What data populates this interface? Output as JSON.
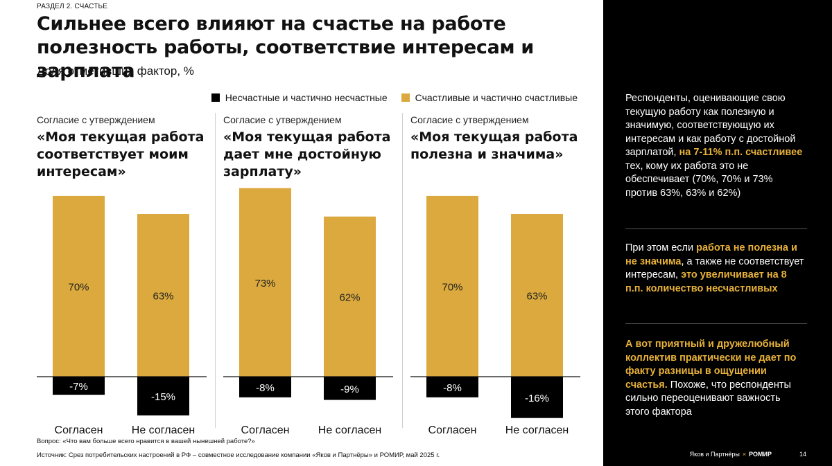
{
  "section_label": "РАЗДЕЛ 2. СЧАСТЬЕ",
  "title": "Сильнее всего влияют на счастье на работе полезность работы, соответствие интересам и зарплата",
  "subtitle": "Доля отметивших фактор, %",
  "legend": [
    {
      "label": "Несчастные и частично несчастные",
      "color": "#000000"
    },
    {
      "label": "Счастливые и частично счастливые",
      "color": "#dba93d"
    }
  ],
  "colors": {
    "happy": "#dba93d",
    "unhappy": "#000000",
    "side_highlight": "#e8b23a"
  },
  "chart_data": [
    {
      "type": "bar",
      "caption": "Согласие с утверждением",
      "title": "«Моя текущая работа соответствует моим интересам»",
      "categories": [
        "Согласен",
        "Не согласен"
      ],
      "series": [
        {
          "name": "Счастливые и частично счастливые",
          "values": [
            70,
            63
          ],
          "labels": [
            "70%",
            "63%"
          ]
        },
        {
          "name": "Несчастные и частично несчастные",
          "values": [
            -7,
            -15
          ],
          "labels": [
            "-7%",
            "-15%"
          ]
        }
      ]
    },
    {
      "type": "bar",
      "caption": "Согласие с утверждением",
      "title": "«Моя текущая работа дает мне достойную зарплату»",
      "categories": [
        "Согласен",
        "Не согласен"
      ],
      "series": [
        {
          "name": "Счастливые и частично счастливые",
          "values": [
            73,
            62
          ],
          "labels": [
            "73%",
            "62%"
          ]
        },
        {
          "name": "Несчастные и частично несчастные",
          "values": [
            -8,
            -9
          ],
          "labels": [
            "-8%",
            "-9%"
          ]
        }
      ]
    },
    {
      "type": "bar",
      "caption": "Согласие с утверждением",
      "title": "«Моя текущая работа полезна и значима»",
      "categories": [
        "Согласен",
        "Не согласен"
      ],
      "series": [
        {
          "name": "Счастливые и частично счастливые",
          "values": [
            70,
            63
          ],
          "labels": [
            "70%",
            "63%"
          ]
        },
        {
          "name": "Несчастные и частично несчастные",
          "values": [
            -8,
            -16
          ],
          "labels": [
            "-8%",
            "-16%"
          ]
        }
      ]
    }
  ],
  "footnotes": {
    "question": "Вопрос: «Что вам больше всего нравится в вашей нынешней работе?»",
    "source": "Источник: Срез потребительских настроений в РФ – совместное исследование компании «Яков и Партнёры» и РОМИР, май 2025 г."
  },
  "side": {
    "block1": {
      "before": "Респонденты, оценивающие свою текущую работу как полезную и значимую, соответствующую их интересам и как работу с достойной зарплатой, ",
      "highlight": "на 7-11% п.п. счастливее",
      "after": " тех, кому их работа это не обеспечивает (70%, 70% и 73% против 63%, 63% и 62%)"
    },
    "block2": {
      "before": "При этом если ",
      "highlight1": "работа не полезна и не значима",
      "middle": ", а также не соответствует интересам, ",
      "highlight2": "это увеличивает на 8 п.п. количество несчастливых"
    },
    "block3": {
      "highlight": "А вот приятный и дружелюбный коллектив практически не дает по факту разницы в ощущении счастья.",
      "after": " Похоже, что респонденты сильно переоценивают важность этого фактора"
    },
    "brand_left": "Яков и Партнёры",
    "brand_x": "×",
    "brand_right": "РОМИР",
    "page_number": "14"
  }
}
